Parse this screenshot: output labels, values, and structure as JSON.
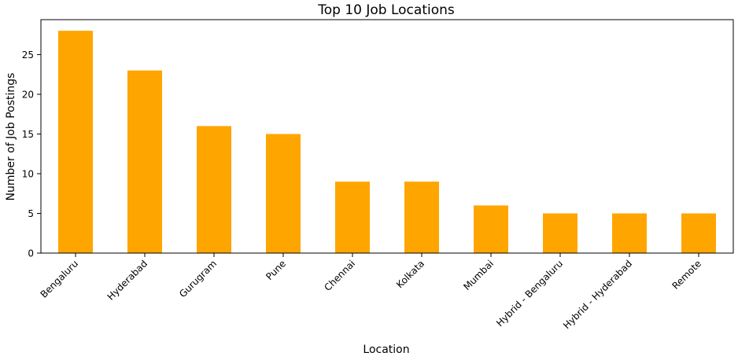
{
  "chart_data": {
    "type": "bar",
    "title": "Top 10 Job Locations",
    "xlabel": "Location",
    "ylabel": "Number of Job Postings",
    "categories": [
      "Bengaluru",
      "Hyderabad",
      "Gurugram",
      "Pune",
      "Chennai",
      "Kolkata",
      "Mumbai",
      "Hybrid - Bengaluru",
      "Hybrid - Hyderabad",
      "Remote"
    ],
    "values": [
      28,
      23,
      16,
      15,
      9,
      9,
      6,
      5,
      5,
      5
    ],
    "ylim": [
      0,
      29.4
    ],
    "yticks": [
      0,
      5,
      10,
      15,
      20,
      25
    ],
    "bar_color": "#FFA500",
    "grid": false,
    "legend": "none"
  }
}
